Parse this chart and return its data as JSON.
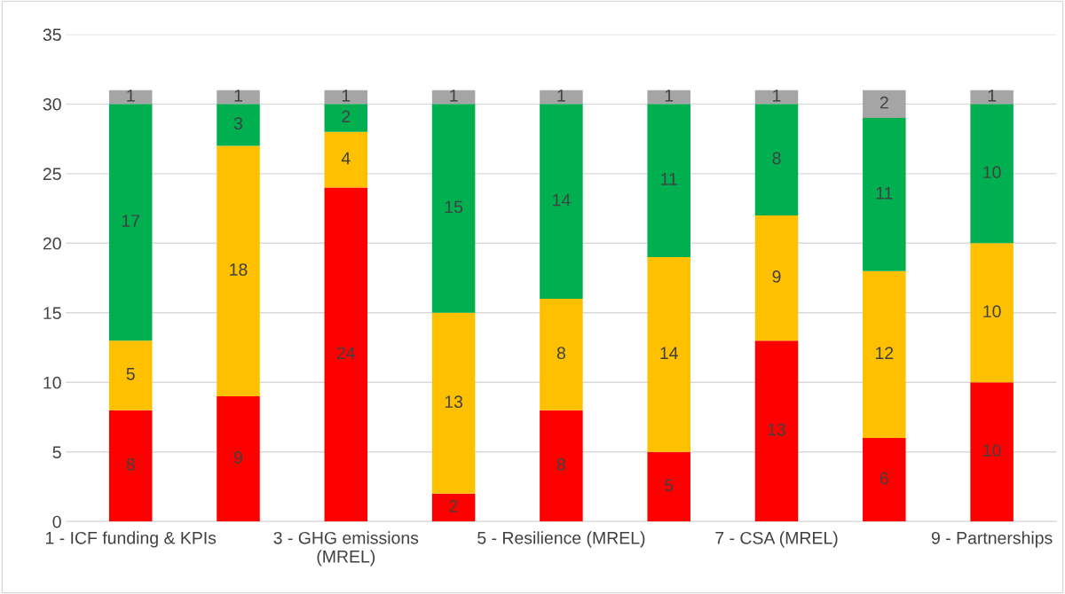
{
  "chart_data": {
    "type": "bar",
    "stacked": true,
    "categories": [
      "1 - ICF funding & KPIs",
      null,
      "3 - GHG emissions\n(MREL)",
      null,
      "5 - Resilience (MREL)",
      null,
      "7 - CSA (MREL)",
      null,
      "9 - Partnerships"
    ],
    "series": [
      {
        "color": "#ff0000",
        "values": [
          8,
          9,
          24,
          2,
          8,
          5,
          13,
          6,
          10
        ]
      },
      {
        "color": "#ffc000",
        "values": [
          5,
          18,
          4,
          13,
          8,
          14,
          9,
          12,
          10
        ]
      },
      {
        "color": "#00b050",
        "values": [
          17,
          3,
          2,
          15,
          14,
          11,
          8,
          11,
          10
        ]
      },
      {
        "color": "#a5a5a5",
        "values": [
          1,
          1,
          1,
          1,
          1,
          1,
          1,
          2,
          1
        ]
      }
    ],
    "ylim": [
      0,
      35
    ],
    "yticks": [
      0,
      5,
      10,
      15,
      20,
      25,
      30,
      35
    ],
    "grid": "y",
    "data_labels": true
  }
}
